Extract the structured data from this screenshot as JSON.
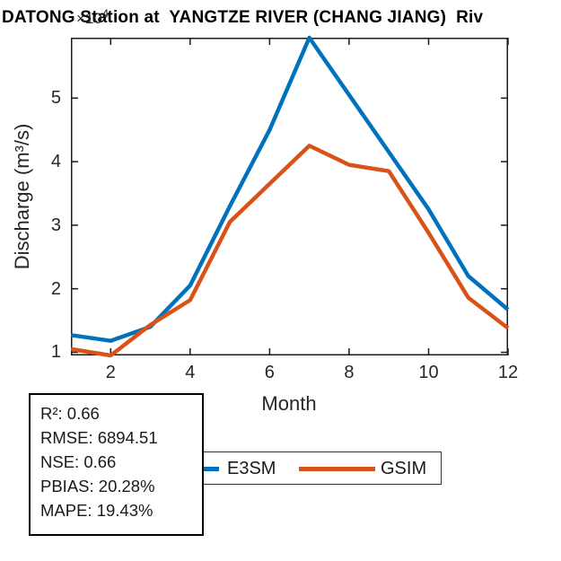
{
  "title": "DATONG Station at  YANGTZE RIVER (CHANG JIANG)  Riv",
  "axis_multiplier": {
    "base": "×10",
    "exp": "4"
  },
  "stats_box": {
    "lines": [
      "R²: 0.66",
      "RMSE: 6894.51",
      "NSE: 0.66",
      "PBIAS: 20.28%",
      "MAPE: 19.43%"
    ]
  },
  "legend": {
    "entries": [
      {
        "label": "E3SM",
        "color": "#0072BD"
      },
      {
        "label": "GSIM",
        "color": "#D95319"
      }
    ]
  },
  "colors": {
    "e3sm_blue": "#0072BD",
    "gsim_orange": "#D95319",
    "axis": "#1a1a1a",
    "tick_text": "#262626"
  },
  "chart_data": {
    "type": "line",
    "title": "DATONG Station at  YANGTZE RIVER (CHANG JIANG)  Riv",
    "xlabel": "Month",
    "ylabel": "Discharge (m³/s)",
    "y_scale_multiplier": "×10⁴",
    "x": [
      1,
      2,
      3,
      4,
      5,
      6,
      7,
      8,
      9,
      10,
      11,
      12
    ],
    "xlim": [
      1,
      12
    ],
    "ylim": [
      0.95,
      5.95
    ],
    "xticks": [
      2,
      4,
      6,
      8,
      10,
      12
    ],
    "yticks": [
      1,
      2,
      3,
      4,
      5
    ],
    "grid": false,
    "legend_position": "bottom, left-of-center, overlapped by stats box",
    "series": [
      {
        "name": "E3SM",
        "color": "#0072BD",
        "values": [
          1.27,
          1.18,
          1.4,
          2.05,
          3.3,
          4.5,
          5.95,
          5.05,
          4.15,
          3.25,
          2.2,
          1.67
        ]
      },
      {
        "name": "GSIM",
        "color": "#D95319",
        "values": [
          1.05,
          0.95,
          1.43,
          1.82,
          3.05,
          3.65,
          4.25,
          3.95,
          3.85,
          2.88,
          1.86,
          1.38
        ]
      }
    ]
  }
}
